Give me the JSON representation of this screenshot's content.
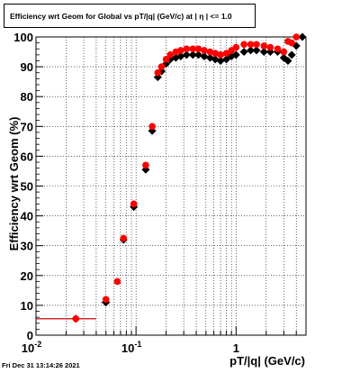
{
  "chart_data": {
    "type": "scatter",
    "title": "Efficiency wrt Geom for Global vs pT/|q| (GeV/c) at |  η | <= 1.0",
    "xlabel": "pT/|q| (GeV/c)",
    "ylabel": "Efficiency wrt Geom (%)",
    "xscale": "log",
    "xlim": [
      0.01,
      5.0
    ],
    "ylim": [
      0,
      100
    ],
    "x_tick_labels": [
      "10^-2",
      "10^-1",
      "1"
    ],
    "y_tick_labels": [
      "0",
      "10",
      "20",
      "30",
      "40",
      "50",
      "60",
      "70",
      "80",
      "90",
      "100"
    ],
    "grid": true,
    "series": [
      {
        "color": "#000000",
        "marker": "diamond",
        "points": [
          {
            "x": 0.025,
            "y": 5.5,
            "xlow": 0.01,
            "xhigh": 0.04
          },
          {
            "x": 0.05,
            "y": 11.0,
            "xlow": 0.045,
            "xhigh": 0.055
          },
          {
            "x": 0.075,
            "y": 32.0
          },
          {
            "x": 0.095,
            "y": 43.0,
            "xlow": 0.088,
            "xhigh": 0.102
          },
          {
            "x": 0.125,
            "y": 55.5
          },
          {
            "x": 0.145,
            "y": 68.5
          },
          {
            "x": 0.165,
            "y": 86.5
          },
          {
            "x": 0.18,
            "y": 88.5
          },
          {
            "x": 0.2,
            "y": 91.0
          },
          {
            "x": 0.22,
            "y": 92.5
          },
          {
            "x": 0.25,
            "y": 93.0
          },
          {
            "x": 0.28,
            "y": 93.5
          },
          {
            "x": 0.32,
            "y": 94.0
          },
          {
            "x": 0.37,
            "y": 94.0
          },
          {
            "x": 0.42,
            "y": 94.0
          },
          {
            "x": 0.48,
            "y": 93.5
          },
          {
            "x": 0.55,
            "y": 93.0
          },
          {
            "x": 0.62,
            "y": 92.5
          },
          {
            "x": 0.7,
            "y": 92.0
          },
          {
            "x": 0.8,
            "y": 92.5
          },
          {
            "x": 0.9,
            "y": 93.5
          },
          {
            "x": 1.0,
            "y": 94.0
          },
          {
            "x": 1.2,
            "y": 95.0
          },
          {
            "x": 1.4,
            "y": 95.5
          },
          {
            "x": 1.6,
            "y": 95.5
          },
          {
            "x": 1.9,
            "y": 95.0
          },
          {
            "x": 2.2,
            "y": 95.0
          },
          {
            "x": 2.6,
            "y": 95.0
          },
          {
            "x": 3.0,
            "y": 93.0
          },
          {
            "x": 3.3,
            "y": 92.0
          },
          {
            "x": 3.6,
            "y": 94.0
          },
          {
            "x": 4.0,
            "y": 97.0
          },
          {
            "x": 4.6,
            "y": 100.0
          }
        ]
      },
      {
        "color": "#ff0000",
        "marker": "circle",
        "points": [
          {
            "x": 0.025,
            "y": 5.5,
            "xlow": 0.01,
            "xhigh": 0.04
          },
          {
            "x": 0.05,
            "y": 12.0
          },
          {
            "x": 0.065,
            "y": 18.0
          },
          {
            "x": 0.075,
            "y": 32.5
          },
          {
            "x": 0.095,
            "y": 44.0
          },
          {
            "x": 0.125,
            "y": 57.0
          },
          {
            "x": 0.145,
            "y": 70.0
          },
          {
            "x": 0.165,
            "y": 88.0
          },
          {
            "x": 0.18,
            "y": 90.0
          },
          {
            "x": 0.2,
            "y": 92.5
          },
          {
            "x": 0.22,
            "y": 94.0
          },
          {
            "x": 0.25,
            "y": 95.0
          },
          {
            "x": 0.28,
            "y": 95.5
          },
          {
            "x": 0.32,
            "y": 96.0
          },
          {
            "x": 0.37,
            "y": 96.0
          },
          {
            "x": 0.42,
            "y": 96.0
          },
          {
            "x": 0.48,
            "y": 95.5
          },
          {
            "x": 0.55,
            "y": 95.0
          },
          {
            "x": 0.62,
            "y": 94.5
          },
          {
            "x": 0.7,
            "y": 94.0
          },
          {
            "x": 0.8,
            "y": 94.5
          },
          {
            "x": 0.9,
            "y": 95.5
          },
          {
            "x": 1.0,
            "y": 96.5
          },
          {
            "x": 1.2,
            "y": 97.5
          },
          {
            "x": 1.4,
            "y": 97.5
          },
          {
            "x": 1.6,
            "y": 97.5
          },
          {
            "x": 1.9,
            "y": 97.0
          },
          {
            "x": 2.2,
            "y": 96.5
          },
          {
            "x": 2.6,
            "y": 96.0
          },
          {
            "x": 3.0,
            "y": 95.0
          },
          {
            "x": 3.3,
            "y": 98.5
          },
          {
            "x": 3.6,
            "y": 98.0
          },
          {
            "x": 4.0,
            "y": 100.0
          }
        ]
      }
    ]
  },
  "footer": {
    "timestamp": "Fri Dec 31 13:14:26 2021"
  }
}
